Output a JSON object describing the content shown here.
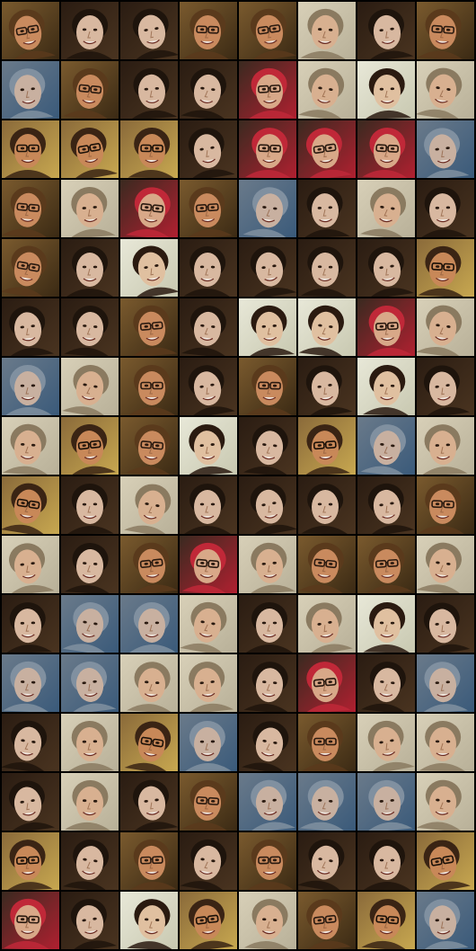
{
  "image": {
    "description_kind": "grid of generated face thumbnails",
    "rows": 16,
    "columns": 8
  },
  "palette": {
    "A": {
      "bg": "#7a5a2e",
      "bg2": "#3b2a14",
      "skin": "#c98a5e",
      "hair": "#5a3a1c",
      "glasses": "#2a1a10"
    },
    "B": {
      "bg": "#d8d0b8",
      "bg2": "#b8b098",
      "skin": "#d8b090",
      "hair": "#8a7a60",
      "glasses": null
    },
    "C": {
      "bg": "#2a1c12",
      "bg2": "#4a3420",
      "skin": "#d8b8a0",
      "hair": "#1e140c",
      "glasses": null
    },
    "D": {
      "bg": "#6a7a8a",
      "bg2": "#3a5a7a",
      "skin": "#c8b0a0",
      "hair": "#8090a0",
      "glasses": null
    },
    "E": {
      "bg": "#3a2a20",
      "bg2": "#b02030",
      "skin": "#d8a888",
      "hair": "#c02838",
      "glasses": "#2a1a10"
    },
    "F": {
      "bg": "#e8e8d8",
      "bg2": "#c8c8b0",
      "skin": "#e0c0a0",
      "hair": "#2a1a10",
      "glasses": null
    },
    "G": {
      "bg": "#8a6a3a",
      "bg2": "#c8a850",
      "skin": "#c88858",
      "hair": "#3a2414",
      "glasses": "#1a1008"
    }
  },
  "grid": [
    [
      "A",
      "C",
      "C",
      "A",
      "A",
      "B",
      "C",
      "A"
    ],
    [
      "D",
      "A",
      "C",
      "C",
      "E",
      "B",
      "F",
      "B"
    ],
    [
      "G",
      "G",
      "G",
      "C",
      "E",
      "E",
      "E",
      "D"
    ],
    [
      "A",
      "B",
      "E",
      "A",
      "D",
      "C",
      "B",
      "C"
    ],
    [
      "A",
      "C",
      "F",
      "C",
      "C",
      "C",
      "C",
      "G"
    ],
    [
      "C",
      "C",
      "A",
      "C",
      "F",
      "F",
      "E",
      "B"
    ],
    [
      "D",
      "B",
      "A",
      "C",
      "A",
      "C",
      "F",
      "C"
    ],
    [
      "B",
      "G",
      "A",
      "F",
      "C",
      "G",
      "D",
      "B"
    ],
    [
      "G",
      "C",
      "B",
      "C",
      "C",
      "C",
      "C",
      "A"
    ],
    [
      "B",
      "C",
      "A",
      "E",
      "B",
      "A",
      "A",
      "B"
    ],
    [
      "C",
      "D",
      "D",
      "B",
      "C",
      "B",
      "F",
      "C"
    ],
    [
      "D",
      "D",
      "B",
      "B",
      "C",
      "E",
      "C",
      "D"
    ],
    [
      "C",
      "B",
      "G",
      "D",
      "C",
      "A",
      "B",
      "B"
    ],
    [
      "C",
      "B",
      "C",
      "A",
      "D",
      "D",
      "D",
      "B"
    ],
    [
      "G",
      "C",
      "A",
      "C",
      "A",
      "C",
      "C",
      "G"
    ],
    [
      "E",
      "C",
      "F",
      "G",
      "B",
      "A",
      "G",
      "D"
    ]
  ]
}
